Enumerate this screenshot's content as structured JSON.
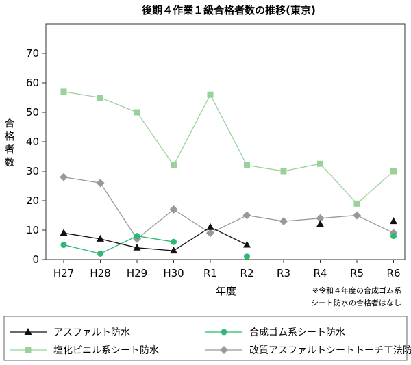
{
  "chart_data": {
    "type": "line",
    "title": "後期４作業１級合格者数の推移(東京)",
    "xlabel": "年度",
    "ylabel": "合格者数",
    "ylim": [
      0,
      80
    ],
    "yticks": [
      0,
      10,
      20,
      30,
      40,
      50,
      60,
      70
    ],
    "grid": false,
    "legend_position": "bottom",
    "categories": [
      "H27",
      "H28",
      "H29",
      "H30",
      "R1",
      "R2",
      "R3",
      "R4",
      "R5",
      "R6"
    ],
    "note_lines": [
      "※令和４年度の合成ゴム系",
      "シート防水の合格者はなし"
    ],
    "series": [
      {
        "name": "アスファルト防水",
        "marker": "triangle",
        "color": "#111111",
        "values": [
          9,
          7,
          4,
          3,
          11,
          5,
          null,
          12,
          null,
          13
        ]
      },
      {
        "name": "合成ゴム系シート防水",
        "marker": "circle",
        "color": "#2eb872",
        "values": [
          5,
          2,
          8,
          6,
          null,
          1,
          null,
          null,
          null,
          8
        ]
      },
      {
        "name": "塩化ビニル系シート防水",
        "marker": "square",
        "color": "#99d199",
        "values": [
          57,
          55,
          50,
          32,
          56,
          32,
          30,
          32.5,
          19,
          30
        ]
      },
      {
        "name": "改質アスファルトシートトーチ工法防水",
        "marker": "diamond",
        "color": "#999999",
        "values": [
          28,
          26,
          7,
          17,
          9,
          15,
          13,
          14,
          15,
          9
        ]
      }
    ]
  }
}
